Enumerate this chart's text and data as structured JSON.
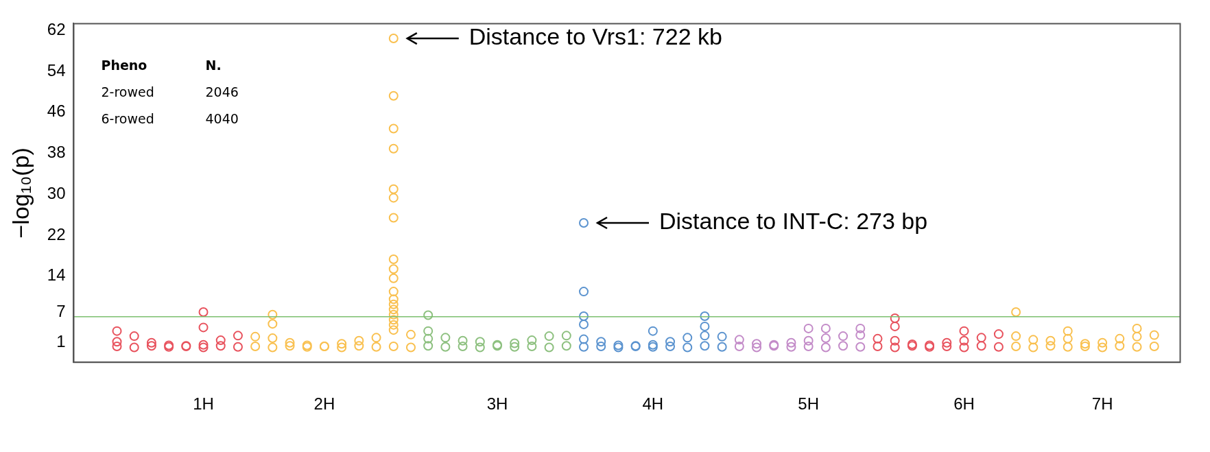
{
  "chart_data": {
    "type": "scatter",
    "ylabel": "−log₁₀(p)",
    "marker": "circle",
    "categories": [
      null,
      null,
      null,
      null,
      null,
      null,
      null,
      "1H",
      null,
      null,
      null,
      null,
      null,
      null,
      "2H",
      null,
      null,
      null,
      null,
      null,
      null,
      null,
      null,
      null,
      "3H",
      null,
      null,
      null,
      null,
      null,
      null,
      null,
      null,
      "4H",
      null,
      null,
      null,
      null,
      null,
      null,
      null,
      null,
      "5H",
      null,
      null,
      null,
      null,
      null,
      null,
      null,
      null,
      "6H",
      null,
      null,
      null,
      null,
      null,
      null,
      null,
      "7H",
      null,
      null,
      null,
      null
    ],
    "ylim": [
      -2.8,
      63.3
    ],
    "yticks": [
      1,
      7,
      14,
      22,
      30,
      38,
      46,
      54,
      62
    ],
    "series": [
      {
        "values": [
          null,
          null,
          1.2,
          2.3,
          1.0,
          0.5,
          0.4,
          0.6,
          1.5,
          2.4,
          2.2,
          1.9,
          1.0,
          0.5,
          0.3,
          0.8,
          1.4,
          2.0,
          3.5,
          2.6,
          1.8,
          2.0,
          1.4,
          1.2,
          0.6,
          0.9,
          1.5,
          2.3,
          2.4,
          1.7,
          1.2,
          0.5,
          0.3,
          0.6,
          1.2,
          2.0,
          2.4,
          2.2,
          1.6,
          0.8,
          0.6,
          1.0,
          1.4,
          1.9,
          2.3,
          2.5,
          1.8,
          1.4,
          0.7,
          0.5,
          1.0,
          1.4,
          2.0,
          2.7,
          2.3,
          1.6,
          1.4,
          1.8,
          0.8,
          1.0,
          1.8,
          2.2,
          2.5,
          null
        ],
        "colors": [
          null,
          null,
          "#e8525d",
          "#e8525d",
          "#e8525d",
          "#e8525d",
          "#e8525d",
          "#e8525d",
          "#e8525d",
          "#e8525d",
          "#f9c04f",
          "#f9c04f",
          "#f9c04f",
          "#f9c04f",
          "#f9c04f",
          "#f9c04f",
          "#f9c04f",
          "#f9c04f",
          "#f9c04f",
          "#f9c04f",
          "#8dc07f",
          "#8dc07f",
          "#8dc07f",
          "#8dc07f",
          "#8dc07f",
          "#8dc07f",
          "#8dc07f",
          "#8dc07f",
          "#8dc07f",
          "#5b93cf",
          "#5b93cf",
          "#5b93cf",
          "#5b93cf",
          "#5b93cf",
          "#5b93cf",
          "#5b93cf",
          "#5b93cf",
          "#5b93cf",
          "#c38bc8",
          "#c38bc8",
          "#c38bc8",
          "#c38bc8",
          "#c38bc8",
          "#c38bc8",
          "#c38bc8",
          "#c38bc8",
          "#e8525d",
          "#e8525d",
          "#e8525d",
          "#e8525d",
          "#e8525d",
          "#e8525d",
          "#e8525d",
          "#e8525d",
          "#f9c04f",
          "#f9c04f",
          "#f9c04f",
          "#f9c04f",
          "#f9c04f",
          "#f9c04f",
          "#f9c04f",
          "#f9c04f",
          "#f9c04f",
          null
        ]
      },
      {
        "values": [
          null,
          null,
          0.3,
          0.1,
          0.4,
          0.2,
          0.3,
          0.1,
          0.4,
          0.2,
          0.3,
          0.1,
          0.4,
          0.2,
          0.3,
          0.1,
          0.4,
          0.2,
          0.3,
          0.1,
          0.4,
          0.2,
          0.3,
          0.1,
          0.4,
          0.2,
          0.3,
          0.1,
          0.4,
          0.2,
          0.3,
          0.1,
          0.4,
          0.2,
          0.3,
          0.1,
          0.4,
          0.2,
          0.3,
          0.1,
          0.4,
          0.2,
          0.3,
          0.1,
          0.4,
          0.2,
          0.3,
          0.1,
          0.4,
          0.2,
          0.3,
          0.1,
          0.4,
          0.2,
          0.3,
          0.1,
          0.4,
          0.2,
          0.3,
          0.1,
          0.4,
          0.2,
          0.3,
          null
        ],
        "colors": [
          null,
          null,
          "#e8525d",
          "#e8525d",
          "#e8525d",
          "#e8525d",
          "#e8525d",
          "#e8525d",
          "#e8525d",
          "#e8525d",
          "#f9c04f",
          "#f9c04f",
          "#f9c04f",
          "#f9c04f",
          "#f9c04f",
          "#f9c04f",
          "#f9c04f",
          "#f9c04f",
          "#f9c04f",
          "#f9c04f",
          "#8dc07f",
          "#8dc07f",
          "#8dc07f",
          "#8dc07f",
          "#8dc07f",
          "#8dc07f",
          "#8dc07f",
          "#8dc07f",
          "#8dc07f",
          "#5b93cf",
          "#5b93cf",
          "#5b93cf",
          "#5b93cf",
          "#5b93cf",
          "#5b93cf",
          "#5b93cf",
          "#5b93cf",
          "#5b93cf",
          "#c38bc8",
          "#c38bc8",
          "#c38bc8",
          "#c38bc8",
          "#c38bc8",
          "#c38bc8",
          "#c38bc8",
          "#c38bc8",
          "#e8525d",
          "#e8525d",
          "#e8525d",
          "#e8525d",
          "#e8525d",
          "#e8525d",
          "#e8525d",
          "#e8525d",
          "#f9c04f",
          "#f9c04f",
          "#f9c04f",
          "#f9c04f",
          "#f9c04f",
          "#f9c04f",
          "#f9c04f",
          "#f9c04f",
          "#f9c04f",
          null
        ]
      },
      {
        "values": [
          null,
          null,
          3.3,
          null,
          null,
          null,
          null,
          7.0,
          null,
          null,
          null,
          6.5,
          null,
          null,
          null,
          null,
          null,
          null,
          60.4,
          null,
          6.4,
          null,
          null,
          null,
          null,
          null,
          null,
          null,
          null,
          24.4,
          null,
          null,
          null,
          3.3,
          null,
          null,
          6.2,
          null,
          null,
          null,
          null,
          null,
          3.8,
          3.8,
          null,
          3.8,
          null,
          5.8,
          null,
          null,
          null,
          3.3,
          null,
          null,
          7.0,
          null,
          null,
          3.3,
          null,
          null,
          null,
          3.8,
          null,
          null
        ],
        "colors": [
          null,
          null,
          "#e8525d",
          null,
          null,
          null,
          null,
          "#e8525d",
          null,
          null,
          null,
          "#f9c04f",
          null,
          null,
          null,
          null,
          null,
          null,
          "#f9c04f",
          null,
          "#8dc07f",
          null,
          null,
          null,
          null,
          null,
          null,
          null,
          null,
          "#5b93cf",
          null,
          null,
          null,
          "#5b93cf",
          null,
          null,
          "#5b93cf",
          null,
          null,
          null,
          null,
          null,
          "#c38bc8",
          "#c38bc8",
          null,
          "#c38bc8",
          null,
          "#e8525d",
          null,
          null,
          null,
          "#e8525d",
          null,
          null,
          "#f9c04f",
          null,
          null,
          "#f9c04f",
          null,
          null,
          null,
          "#f9c04f",
          null,
          null
        ]
      },
      {
        "values": [
          null,
          null,
          null,
          null,
          null,
          null,
          null,
          4.0,
          null,
          null,
          null,
          4.7,
          null,
          null,
          null,
          null,
          null,
          null,
          49.2,
          null,
          3.3,
          null,
          null,
          null,
          null,
          null,
          null,
          null,
          null,
          11.0,
          null,
          null,
          null,
          null,
          null,
          null,
          4.2,
          null,
          null,
          null,
          null,
          null,
          null,
          null,
          null,
          null,
          null,
          4.2,
          null,
          null,
          null,
          null,
          null,
          null,
          null,
          null,
          null,
          null,
          null,
          null,
          null,
          null,
          null,
          null
        ],
        "colors": [
          null,
          null,
          null,
          null,
          null,
          null,
          null,
          "#e8525d",
          null,
          null,
          null,
          "#f9c04f",
          null,
          null,
          null,
          null,
          null,
          null,
          "#f9c04f",
          null,
          "#8dc07f",
          null,
          null,
          null,
          null,
          null,
          null,
          null,
          null,
          "#5b93cf",
          null,
          null,
          null,
          null,
          null,
          null,
          "#5b93cf",
          null,
          null,
          null,
          null,
          null,
          null,
          null,
          null,
          null,
          null,
          "#e8525d",
          null,
          null,
          null,
          null,
          null,
          null,
          null,
          null,
          null,
          null,
          null,
          null,
          null,
          null,
          null,
          null
        ]
      },
      {
        "values": [
          null,
          null,
          null,
          null,
          null,
          null,
          null,
          null,
          null,
          null,
          null,
          null,
          null,
          null,
          null,
          null,
          null,
          null,
          42.8,
          null,
          null,
          null,
          null,
          null,
          null,
          null,
          null,
          null,
          null,
          6.2,
          null,
          null,
          null,
          null,
          null,
          null,
          null,
          null,
          null,
          null,
          null,
          null,
          null,
          null,
          null,
          null,
          null,
          null,
          null,
          null,
          null,
          null,
          null,
          null,
          null,
          null,
          null,
          null,
          null,
          null,
          null,
          null,
          null,
          null
        ],
        "colors": [
          null,
          null,
          null,
          null,
          null,
          null,
          null,
          null,
          null,
          null,
          null,
          null,
          null,
          null,
          null,
          null,
          null,
          null,
          "#f9c04f",
          null,
          null,
          null,
          null,
          null,
          null,
          null,
          null,
          null,
          null,
          "#5b93cf",
          null,
          null,
          null,
          null,
          null,
          null,
          null,
          null,
          null,
          null,
          null,
          null,
          null,
          null,
          null,
          null,
          null,
          null,
          null,
          null,
          null,
          null,
          null,
          null,
          null,
          null,
          null,
          null,
          null,
          null,
          null,
          null,
          null,
          null
        ]
      },
      {
        "values": [
          null,
          null,
          null,
          null,
          null,
          null,
          null,
          null,
          null,
          null,
          null,
          null,
          null,
          null,
          null,
          null,
          null,
          null,
          38.9,
          null,
          null,
          null,
          null,
          null,
          null,
          null,
          null,
          null,
          null,
          4.6,
          null,
          null,
          null,
          null,
          null,
          null,
          null,
          null,
          null,
          null,
          null,
          null,
          null,
          null,
          null,
          null,
          null,
          null,
          null,
          null,
          null,
          null,
          null,
          null,
          null,
          null,
          null,
          null,
          null,
          null,
          null,
          null,
          null,
          null
        ],
        "colors": [
          null,
          null,
          null,
          null,
          null,
          null,
          null,
          null,
          null,
          null,
          null,
          null,
          null,
          null,
          null,
          null,
          null,
          null,
          "#f9c04f",
          null,
          null,
          null,
          null,
          null,
          null,
          null,
          null,
          null,
          null,
          "#5b93cf",
          null,
          null,
          null,
          null,
          null,
          null,
          null,
          null,
          null,
          null,
          null,
          null,
          null,
          null,
          null,
          null,
          null,
          null,
          null,
          null,
          null,
          null,
          null,
          null,
          null,
          null,
          null,
          null,
          null,
          null,
          null,
          null,
          null,
          null
        ]
      },
      {
        "color": "#f9c04f",
        "values": [
          null,
          null,
          null,
          null,
          null,
          null,
          null,
          null,
          null,
          null,
          null,
          null,
          null,
          null,
          null,
          null,
          null,
          null,
          31.0,
          null,
          null,
          null,
          null,
          null,
          null,
          null,
          null,
          null,
          null,
          null,
          null,
          null,
          null,
          null,
          null,
          null,
          null,
          null,
          null,
          null,
          null,
          null,
          null,
          null,
          null,
          null,
          null,
          null,
          null,
          null,
          null,
          null,
          null,
          null,
          null,
          null,
          null,
          null,
          null,
          null,
          null,
          null,
          null,
          null
        ]
      },
      {
        "color": "#f9c04f",
        "values": [
          null,
          null,
          null,
          null,
          null,
          null,
          null,
          null,
          null,
          null,
          null,
          null,
          null,
          null,
          null,
          null,
          null,
          null,
          29.3,
          null,
          null,
          null,
          null,
          null,
          null,
          null,
          null,
          null,
          null,
          null,
          null,
          null,
          null,
          null,
          null,
          null,
          null,
          null,
          null,
          null,
          null,
          null,
          null,
          null,
          null,
          null,
          null,
          null,
          null,
          null,
          null,
          null,
          null,
          null,
          null,
          null,
          null,
          null,
          null,
          null,
          null,
          null,
          null,
          null
        ]
      },
      {
        "color": "#f9c04f",
        "values": [
          null,
          null,
          null,
          null,
          null,
          null,
          null,
          null,
          null,
          null,
          null,
          null,
          null,
          null,
          null,
          null,
          null,
          null,
          25.4,
          null,
          null,
          null,
          null,
          null,
          null,
          null,
          null,
          null,
          null,
          null,
          null,
          null,
          null,
          null,
          null,
          null,
          null,
          null,
          null,
          null,
          null,
          null,
          null,
          null,
          null,
          null,
          null,
          null,
          null,
          null,
          null,
          null,
          null,
          null,
          null,
          null,
          null,
          null,
          null,
          null,
          null,
          null,
          null,
          null
        ]
      },
      {
        "color": "#f9c04f",
        "values": [
          null,
          null,
          null,
          null,
          null,
          null,
          null,
          null,
          null,
          null,
          null,
          null,
          null,
          null,
          null,
          null,
          null,
          null,
          17.3,
          null,
          null,
          null,
          null,
          null,
          null,
          null,
          null,
          null,
          null,
          null,
          null,
          null,
          null,
          null,
          null,
          null,
          null,
          null,
          null,
          null,
          null,
          null,
          null,
          null,
          null,
          null,
          null,
          null,
          null,
          null,
          null,
          null,
          null,
          null,
          null,
          null,
          null,
          null,
          null,
          null,
          null,
          null,
          null,
          null
        ]
      },
      {
        "color": "#f9c04f",
        "values": [
          null,
          null,
          null,
          null,
          null,
          null,
          null,
          null,
          null,
          null,
          null,
          null,
          null,
          null,
          null,
          null,
          null,
          null,
          15.4,
          null,
          null,
          null,
          null,
          null,
          null,
          null,
          null,
          null,
          null,
          null,
          null,
          null,
          null,
          null,
          null,
          null,
          null,
          null,
          null,
          null,
          null,
          null,
          null,
          null,
          null,
          null,
          null,
          null,
          null,
          null,
          null,
          null,
          null,
          null,
          null,
          null,
          null,
          null,
          null,
          null,
          null,
          null,
          null,
          null
        ]
      },
      {
        "color": "#f9c04f",
        "values": [
          null,
          null,
          null,
          null,
          null,
          null,
          null,
          null,
          null,
          null,
          null,
          null,
          null,
          null,
          null,
          null,
          null,
          null,
          13.6,
          null,
          null,
          null,
          null,
          null,
          null,
          null,
          null,
          null,
          null,
          null,
          null,
          null,
          null,
          null,
          null,
          null,
          null,
          null,
          null,
          null,
          null,
          null,
          null,
          null,
          null,
          null,
          null,
          null,
          null,
          null,
          null,
          null,
          null,
          null,
          null,
          null,
          null,
          null,
          null,
          null,
          null,
          null,
          null,
          null
        ]
      },
      {
        "color": "#f9c04f",
        "values": [
          null,
          null,
          null,
          null,
          null,
          null,
          null,
          null,
          null,
          null,
          null,
          null,
          null,
          null,
          null,
          null,
          null,
          null,
          11.0,
          null,
          null,
          null,
          null,
          null,
          null,
          null,
          null,
          null,
          null,
          null,
          null,
          null,
          null,
          null,
          null,
          null,
          null,
          null,
          null,
          null,
          null,
          null,
          null,
          null,
          null,
          null,
          null,
          null,
          null,
          null,
          null,
          null,
          null,
          null,
          null,
          null,
          null,
          null,
          null,
          null,
          null,
          null,
          null,
          null
        ]
      },
      {
        "color": "#f9c04f",
        "values": [
          null,
          null,
          null,
          null,
          null,
          null,
          null,
          null,
          null,
          null,
          null,
          null,
          null,
          null,
          null,
          null,
          null,
          null,
          9.5,
          null,
          null,
          null,
          null,
          null,
          null,
          null,
          null,
          null,
          null,
          null,
          null,
          null,
          null,
          null,
          null,
          null,
          null,
          null,
          null,
          null,
          null,
          null,
          null,
          null,
          null,
          null,
          null,
          null,
          null,
          null,
          null,
          null,
          null,
          null,
          null,
          null,
          null,
          null,
          null,
          null,
          null,
          null,
          null,
          null
        ]
      },
      {
        "color": "#f9c04f",
        "values": [
          null,
          null,
          null,
          null,
          null,
          null,
          null,
          null,
          null,
          null,
          null,
          null,
          null,
          null,
          null,
          null,
          null,
          null,
          8.5,
          null,
          null,
          null,
          null,
          null,
          null,
          null,
          null,
          null,
          null,
          null,
          null,
          null,
          null,
          null,
          null,
          null,
          null,
          null,
          null,
          null,
          null,
          null,
          null,
          null,
          null,
          null,
          null,
          null,
          null,
          null,
          null,
          null,
          null,
          null,
          null,
          null,
          null,
          null,
          null,
          null,
          null,
          null,
          null,
          null
        ]
      },
      {
        "color": "#f9c04f",
        "values": [
          null,
          null,
          null,
          null,
          null,
          null,
          null,
          null,
          null,
          null,
          null,
          null,
          null,
          null,
          null,
          null,
          null,
          null,
          7.5,
          null,
          null,
          null,
          null,
          null,
          null,
          null,
          null,
          null,
          null,
          null,
          null,
          null,
          null,
          null,
          null,
          null,
          null,
          null,
          null,
          null,
          null,
          null,
          null,
          null,
          null,
          null,
          null,
          null,
          null,
          null,
          null,
          null,
          null,
          null,
          null,
          null,
          null,
          null,
          null,
          null,
          null,
          null,
          null,
          null
        ]
      },
      {
        "color": "#f9c04f",
        "values": [
          null,
          null,
          null,
          null,
          null,
          null,
          null,
          null,
          null,
          null,
          null,
          null,
          null,
          null,
          null,
          null,
          null,
          null,
          6.5,
          null,
          null,
          null,
          null,
          null,
          null,
          null,
          null,
          null,
          null,
          null,
          null,
          null,
          null,
          null,
          null,
          null,
          null,
          null,
          null,
          null,
          null,
          null,
          null,
          null,
          null,
          null,
          null,
          null,
          null,
          null,
          null,
          null,
          null,
          null,
          null,
          null,
          null,
          null,
          null,
          null,
          null,
          null,
          null,
          null
        ]
      },
      {
        "color": "#f9c04f",
        "values": [
          null,
          null,
          null,
          null,
          null,
          null,
          null,
          null,
          null,
          null,
          null,
          null,
          null,
          null,
          null,
          null,
          null,
          null,
          5.5,
          null,
          null,
          null,
          null,
          null,
          null,
          null,
          null,
          null,
          null,
          null,
          null,
          null,
          null,
          null,
          null,
          null,
          null,
          null,
          null,
          null,
          null,
          null,
          null,
          null,
          null,
          null,
          null,
          null,
          null,
          null,
          null,
          null,
          null,
          null,
          null,
          null,
          null,
          null,
          null,
          null,
          null,
          null,
          null,
          null
        ]
      },
      {
        "color": "#f9c04f",
        "values": [
          null,
          null,
          null,
          null,
          null,
          null,
          null,
          null,
          null,
          null,
          null,
          null,
          null,
          null,
          null,
          null,
          null,
          null,
          4.5,
          null,
          null,
          null,
          null,
          null,
          null,
          null,
          null,
          null,
          null,
          null,
          null,
          null,
          null,
          null,
          null,
          null,
          null,
          null,
          null,
          null,
          null,
          null,
          null,
          null,
          null,
          null,
          null,
          null,
          null,
          null,
          null,
          null,
          null,
          null,
          null,
          null,
          null,
          null,
          null,
          null,
          null,
          null,
          null,
          null
        ]
      }
    ],
    "ref_lines": [
      {
        "axis": "y",
        "value": 6.1,
        "color": "#7cbf6f"
      }
    ],
    "annotations": [
      "Distance to Vrs1: 722 kb",
      "Distance to INT-C: 273 bp",
      "Pheno",
      "N.",
      "2-rowed",
      "2046",
      "6-rowed",
      "4040"
    ]
  }
}
